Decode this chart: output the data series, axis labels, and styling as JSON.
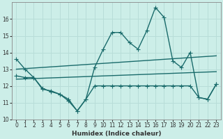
{
  "title": "",
  "xlabel": "Humidex (Indice chaleur)",
  "ylabel": "",
  "bg_color": "#cceee8",
  "line_color": "#1a6b6b",
  "grid_color": "#b8ddd8",
  "xlim": [
    -0.5,
    23.5
  ],
  "ylim": [
    10,
    17
  ],
  "yticks": [
    10,
    11,
    12,
    13,
    14,
    15,
    16
  ],
  "xticks": [
    0,
    1,
    2,
    3,
    4,
    5,
    6,
    7,
    8,
    9,
    10,
    11,
    12,
    13,
    14,
    15,
    16,
    17,
    18,
    19,
    20,
    21,
    22,
    23
  ],
  "series": [
    {
      "x": [
        0,
        1,
        2,
        3,
        4,
        5,
        6,
        7,
        8,
        9,
        10,
        11,
        12,
        13,
        14,
        15,
        16,
        17,
        18,
        19,
        20,
        21,
        22,
        23
      ],
      "y": [
        13.6,
        13.0,
        12.5,
        11.8,
        11.7,
        11.5,
        11.1,
        10.5,
        11.2,
        13.1,
        14.2,
        15.2,
        15.2,
        14.6,
        14.2,
        15.3,
        16.7,
        16.1,
        13.5,
        13.1,
        14.0,
        11.3,
        11.2,
        12.1
      ]
    },
    {
      "x": [
        0,
        23
      ],
      "y": [
        13.0,
        13.8
      ]
    },
    {
      "x": [
        0,
        23
      ],
      "y": [
        12.4,
        12.85
      ]
    },
    {
      "x": [
        0,
        1,
        2,
        3,
        4,
        5,
        6,
        7,
        8,
        9,
        10,
        11,
        12,
        13,
        14,
        15,
        16,
        17,
        18,
        19,
        20,
        21,
        22,
        23
      ],
      "y": [
        12.6,
        12.5,
        12.5,
        11.85,
        11.65,
        11.5,
        11.2,
        10.5,
        11.2,
        12.0,
        12.0,
        12.0,
        12.0,
        12.0,
        12.0,
        12.0,
        12.0,
        12.0,
        12.0,
        12.0,
        12.0,
        11.3,
        11.2,
        12.1
      ]
    }
  ],
  "marker": "+",
  "markersize": 4,
  "linewidth": 1.0,
  "tick_fontsize": 5.5,
  "xlabel_fontsize": 6.5
}
